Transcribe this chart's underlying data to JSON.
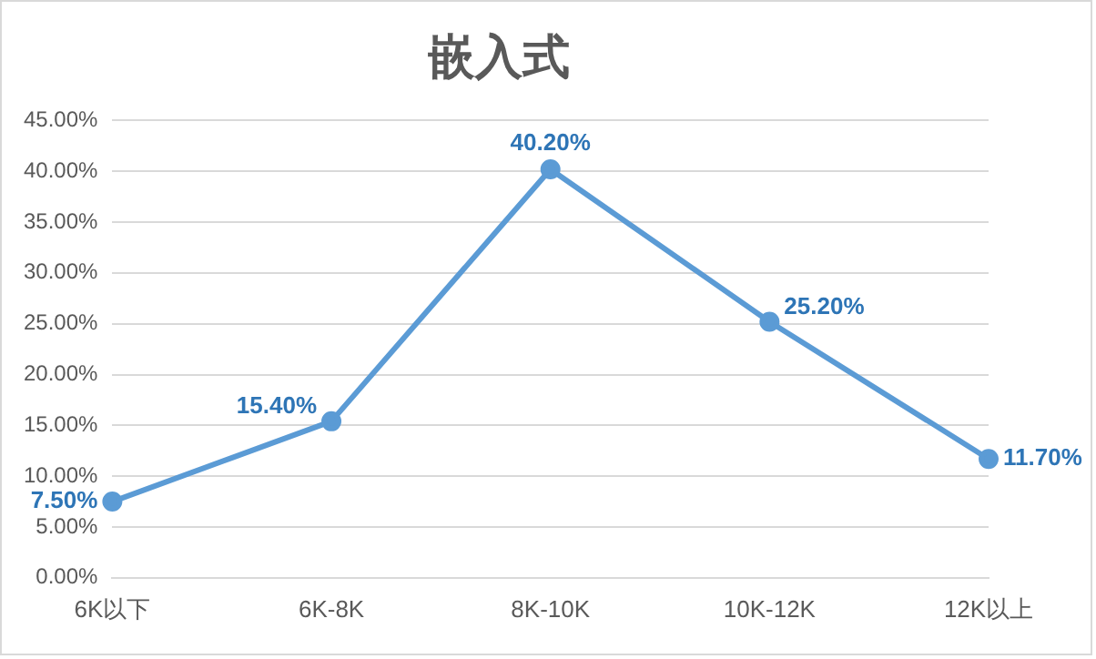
{
  "chart_data": {
    "type": "line",
    "title": "嵌入式",
    "categories": [
      "6K以下",
      "6K-8K",
      "8K-10K",
      "10K-12K",
      "12K以上"
    ],
    "series": [
      {
        "color": "#5b9bd5",
        "values": [
          7.5,
          15.4,
          40.2,
          25.2,
          11.7
        ],
        "value_labels": [
          "7.50%",
          "15.40%",
          "40.20%",
          "25.20%",
          "11.70%"
        ]
      }
    ],
    "ylim": [
      0,
      45
    ],
    "yticks": [
      {
        "value": 0,
        "label": "0.00%"
      },
      {
        "value": 5,
        "label": "5.00%"
      },
      {
        "value": 10,
        "label": "10.00%"
      },
      {
        "value": 15,
        "label": "15.00%"
      },
      {
        "value": 20,
        "label": "20.00%"
      },
      {
        "value": 25,
        "label": "25.00%"
      },
      {
        "value": 30,
        "label": "30.00%"
      },
      {
        "value": 35,
        "label": "35.00%"
      },
      {
        "value": 40,
        "label": "40.00%"
      },
      {
        "value": 45,
        "label": "45.00%"
      }
    ],
    "grid": "y",
    "legend": false,
    "marker": "circle",
    "line_style": "solid"
  }
}
